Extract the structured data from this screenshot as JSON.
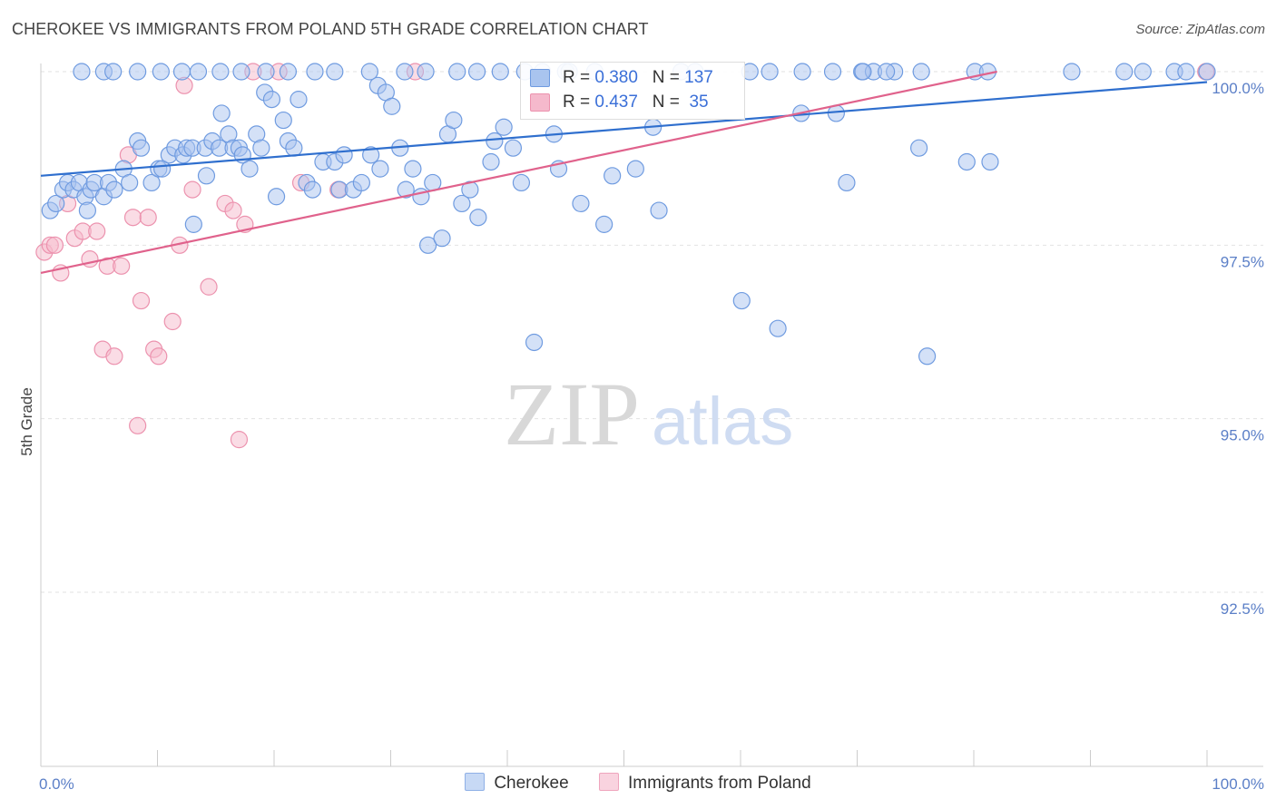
{
  "title": "CHEROKEE VS IMMIGRANTS FROM POLAND 5TH GRADE CORRELATION CHART",
  "source": "Source: ZipAtlas.com",
  "watermark": {
    "zip": "ZIP",
    "atlas": "atlas"
  },
  "legend": {
    "r_label": "R =",
    "n_label": "N =",
    "rows": [
      {
        "r": "0.380",
        "n": "137"
      },
      {
        "r": "0.437",
        "n": "35"
      }
    ]
  },
  "colors": {
    "series1_fill": "#a9c4ef",
    "series1_stroke": "#6f9be0",
    "series1_line": "#2f6fce",
    "series2_fill": "#f5b9cc",
    "series2_stroke": "#ec92ae",
    "series2_line": "#e0628c",
    "tick_text": "#5b7fc7",
    "grid": "#e2e2e2"
  },
  "chart_data": {
    "type": "scatter",
    "title": "CHEROKEE VS IMMIGRANTS FROM POLAND 5TH GRADE CORRELATION CHART",
    "xlabel": "",
    "ylabel": "5th Grade",
    "xlim": [
      0,
      100
    ],
    "ylim": [
      90.0,
      100.2
    ],
    "x_ticks": [
      "0.0%",
      "100.0%"
    ],
    "y_ticks": [
      {
        "value": 92.5,
        "label": "92.5%"
      },
      {
        "value": 95.0,
        "label": "95.0%"
      },
      {
        "value": 97.5,
        "label": "97.5%"
      },
      {
        "value": 100.0,
        "label": "100.0%"
      }
    ],
    "grid": true,
    "legend_position": "bottom",
    "series": [
      {
        "name": "Cherokee",
        "r": 0.38,
        "n": 137,
        "trend": [
          [
            0,
            98.5
          ],
          [
            100,
            99.85
          ]
        ],
        "points": [
          [
            0.8,
            98.0
          ],
          [
            1.3,
            98.1
          ],
          [
            1.9,
            98.3
          ],
          [
            2.3,
            98.4
          ],
          [
            2.8,
            98.3
          ],
          [
            3.3,
            98.4
          ],
          [
            3.8,
            98.2
          ],
          [
            4.0,
            98.0
          ],
          [
            4.3,
            98.3
          ],
          [
            4.6,
            98.4
          ],
          [
            5.4,
            98.2
          ],
          [
            5.8,
            98.4
          ],
          [
            6.3,
            98.3
          ],
          [
            7.1,
            98.6
          ],
          [
            7.6,
            98.4
          ],
          [
            8.3,
            99.0
          ],
          [
            8.6,
            98.9
          ],
          [
            9.5,
            98.4
          ],
          [
            10.1,
            98.6
          ],
          [
            10.4,
            98.6
          ],
          [
            11.0,
            98.8
          ],
          [
            11.5,
            98.9
          ],
          [
            12.2,
            98.8
          ],
          [
            12.5,
            98.9
          ],
          [
            13.0,
            98.9
          ],
          [
            13.1,
            97.8
          ],
          [
            14.1,
            98.9
          ],
          [
            14.2,
            98.5
          ],
          [
            14.7,
            99.0
          ],
          [
            15.3,
            98.9
          ],
          [
            15.5,
            99.4
          ],
          [
            16.1,
            99.1
          ],
          [
            16.5,
            98.9
          ],
          [
            17.0,
            98.9
          ],
          [
            17.3,
            98.8
          ],
          [
            17.9,
            98.6
          ],
          [
            18.5,
            99.1
          ],
          [
            18.9,
            98.9
          ],
          [
            19.2,
            99.7
          ],
          [
            19.8,
            99.6
          ],
          [
            20.2,
            98.2
          ],
          [
            20.8,
            99.3
          ],
          [
            21.2,
            99.0
          ],
          [
            21.7,
            98.9
          ],
          [
            22.1,
            99.6
          ],
          [
            22.8,
            98.4
          ],
          [
            23.3,
            98.3
          ],
          [
            24.2,
            98.7
          ],
          [
            25.2,
            98.7
          ],
          [
            25.6,
            98.3
          ],
          [
            26.0,
            98.8
          ],
          [
            26.8,
            98.3
          ],
          [
            27.5,
            98.4
          ],
          [
            28.3,
            98.8
          ],
          [
            28.9,
            99.8
          ],
          [
            29.1,
            98.6
          ],
          [
            29.6,
            99.7
          ],
          [
            30.1,
            99.5
          ],
          [
            30.8,
            98.9
          ],
          [
            31.3,
            98.3
          ],
          [
            31.9,
            98.6
          ],
          [
            32.6,
            98.2
          ],
          [
            33.0,
            100.0
          ],
          [
            33.2,
            97.5
          ],
          [
            33.6,
            98.4
          ],
          [
            34.4,
            97.6
          ],
          [
            34.9,
            99.1
          ],
          [
            35.4,
            99.3
          ],
          [
            36.1,
            98.1
          ],
          [
            36.8,
            98.3
          ],
          [
            37.5,
            97.9
          ],
          [
            38.6,
            98.7
          ],
          [
            38.9,
            99.0
          ],
          [
            39.7,
            99.2
          ],
          [
            40.5,
            98.9
          ],
          [
            41.2,
            98.4
          ],
          [
            42.3,
            96.1
          ],
          [
            44.0,
            99.1
          ],
          [
            44.4,
            98.6
          ],
          [
            46.3,
            98.1
          ],
          [
            47.5,
            100.0
          ],
          [
            48.3,
            97.8
          ],
          [
            49.0,
            98.5
          ],
          [
            51.0,
            98.6
          ],
          [
            52.5,
            99.2
          ],
          [
            53.0,
            98.0
          ],
          [
            54.9,
            100.0
          ],
          [
            56.1,
            100.0
          ],
          [
            60.1,
            96.7
          ],
          [
            63.2,
            96.3
          ],
          [
            65.2,
            99.4
          ],
          [
            68.2,
            99.4
          ],
          [
            69.1,
            98.4
          ],
          [
            70.4,
            100.0
          ],
          [
            71.4,
            100.0
          ],
          [
            73.2,
            100.0
          ],
          [
            75.3,
            98.9
          ],
          [
            76.0,
            95.9
          ],
          [
            79.4,
            98.7
          ],
          [
            81.4,
            98.7
          ],
          [
            3.5,
            100.0
          ],
          [
            5.4,
            100.0
          ],
          [
            6.2,
            100.0
          ],
          [
            8.3,
            100.0
          ],
          [
            10.3,
            100.0
          ],
          [
            12.1,
            100.0
          ],
          [
            13.5,
            100.0
          ],
          [
            15.4,
            100.0
          ],
          [
            17.2,
            100.0
          ],
          [
            19.3,
            100.0
          ],
          [
            21.2,
            100.0
          ],
          [
            23.5,
            100.0
          ],
          [
            25.2,
            100.0
          ],
          [
            28.2,
            100.0
          ],
          [
            31.2,
            100.0
          ],
          [
            35.7,
            100.0
          ],
          [
            37.4,
            100.0
          ],
          [
            39.4,
            100.0
          ],
          [
            41.5,
            100.0
          ],
          [
            43.0,
            100.0
          ],
          [
            45.0,
            100.0
          ],
          [
            60.8,
            100.0
          ],
          [
            62.5,
            100.0
          ],
          [
            65.3,
            100.0
          ],
          [
            67.9,
            100.0
          ],
          [
            70.5,
            100.0
          ],
          [
            72.5,
            100.0
          ],
          [
            75.5,
            100.0
          ],
          [
            80.1,
            100.0
          ],
          [
            81.2,
            100.0
          ],
          [
            88.4,
            100.0
          ],
          [
            92.9,
            100.0
          ],
          [
            94.5,
            100.0
          ],
          [
            97.2,
            100.0
          ],
          [
            98.2,
            100.0
          ],
          [
            100.0,
            100.0
          ],
          [
            45.3,
            100.0
          ]
        ]
      },
      {
        "name": "Immigrants from Poland",
        "r": 0.437,
        "n": 35,
        "trend": [
          [
            0,
            97.1
          ],
          [
            82,
            100.0
          ]
        ],
        "points": [
          [
            0.3,
            97.4
          ],
          [
            0.8,
            97.5
          ],
          [
            1.2,
            97.5
          ],
          [
            1.7,
            97.1
          ],
          [
            2.3,
            98.1
          ],
          [
            2.9,
            97.6
          ],
          [
            3.6,
            97.7
          ],
          [
            4.2,
            97.3
          ],
          [
            4.8,
            97.7
          ],
          [
            5.3,
            96.0
          ],
          [
            5.7,
            97.2
          ],
          [
            6.3,
            95.9
          ],
          [
            6.9,
            97.2
          ],
          [
            7.5,
            98.8
          ],
          [
            7.9,
            97.9
          ],
          [
            8.3,
            94.9
          ],
          [
            8.6,
            96.7
          ],
          [
            9.2,
            97.9
          ],
          [
            9.7,
            96.0
          ],
          [
            10.1,
            95.9
          ],
          [
            11.3,
            96.4
          ],
          [
            11.9,
            97.5
          ],
          [
            12.3,
            99.8
          ],
          [
            13.0,
            98.3
          ],
          [
            14.4,
            96.9
          ],
          [
            15.8,
            98.1
          ],
          [
            16.5,
            98.0
          ],
          [
            17.5,
            97.8
          ],
          [
            17.0,
            94.7
          ],
          [
            18.2,
            100.0
          ],
          [
            20.4,
            100.0
          ],
          [
            22.3,
            98.4
          ],
          [
            25.5,
            98.3
          ],
          [
            32.1,
            100.0
          ],
          [
            99.9,
            100.0
          ]
        ]
      }
    ]
  },
  "bottom_legend": [
    {
      "label": "Cherokee"
    },
    {
      "label": "Immigrants from Poland"
    }
  ]
}
